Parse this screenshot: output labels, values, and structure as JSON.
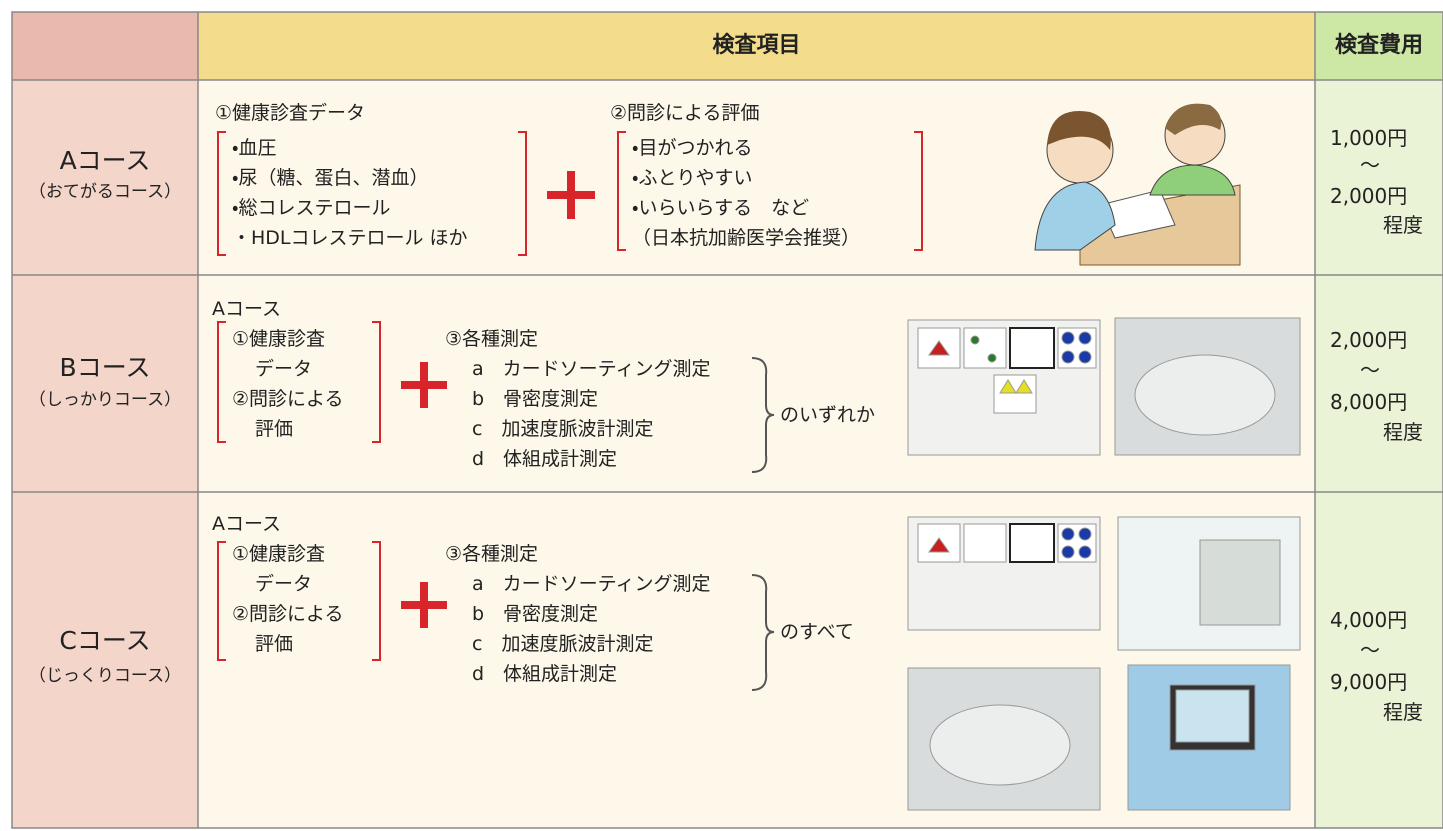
{
  "header": {
    "items": "検査項目",
    "cost": "検査費用"
  },
  "rows": [
    {
      "course": "Aコース",
      "nickname": "（おてがるコース）",
      "group1": {
        "title": "①健康診査データ",
        "items": [
          "・血圧",
          "・尿（糖、蛋白、潜血）",
          "・総コレステロール",
          "・HDLコレステロール ほか"
        ]
      },
      "group2": {
        "title": "②問診による評価",
        "items": [
          "・目がつかれる",
          "・ふとりやすい",
          "・いらいらする　など",
          "（日本抗加齢医学会推奨）"
        ]
      },
      "cost": [
        "1,000円",
        "～",
        "2,000円",
        "程度"
      ]
    },
    {
      "course": "Bコース",
      "nickname": "（しっかりコース）",
      "base": "Aコース",
      "base_items": [
        "①健康診査",
        "データ",
        "②問診による",
        "評価"
      ],
      "measure": {
        "title": "③各種測定",
        "items": [
          "a　カードソーティング測定",
          "b　骨密度測定",
          "c　加速度脈波計測定",
          "d　体組成計測定"
        ]
      },
      "choice": "のいずれか",
      "cost": [
        "2,000円",
        "～",
        "8,000円",
        "程度"
      ]
    },
    {
      "course": "Cコース",
      "nickname": "（じっくりコース）",
      "base": "Aコース",
      "base_items": [
        "①健康診査",
        "データ",
        "②問診による",
        "評価"
      ],
      "measure": {
        "title": "③各種測定",
        "items": [
          "a　カードソーティング測定",
          "b　骨密度測定",
          "c　加速度脈波計測定",
          "d　体組成計測定"
        ]
      },
      "choice": "のすべて",
      "cost": [
        "4,000円",
        "～",
        "9,000円",
        "程度"
      ]
    }
  ]
}
